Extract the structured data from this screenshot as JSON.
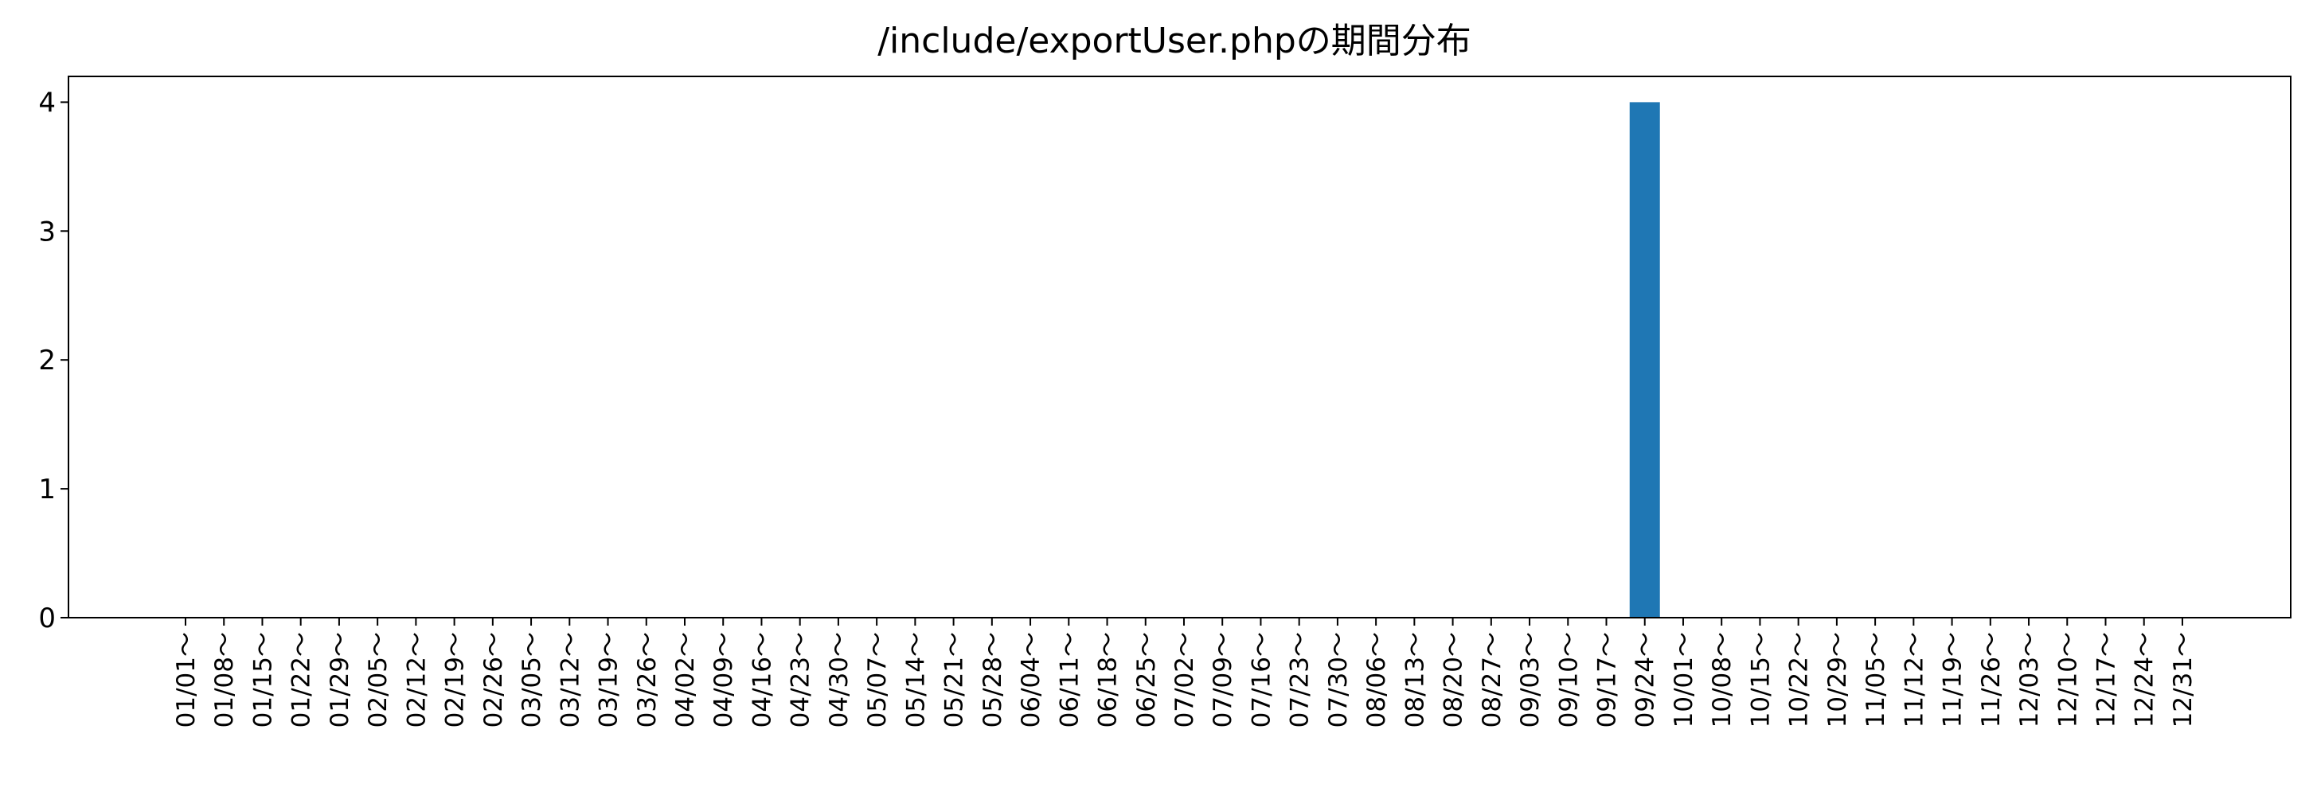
{
  "chart_data": {
    "type": "bar",
    "title": "/include/exportUser.phpの期間分布",
    "xlabel": "",
    "ylabel": "",
    "ylim": [
      0,
      4.2
    ],
    "yticks": [
      0,
      1,
      2,
      3,
      4
    ],
    "categories": [
      "01/01～",
      "01/08～",
      "01/15～",
      "01/22～",
      "01/29～",
      "02/05～",
      "02/12～",
      "02/19～",
      "02/26～",
      "03/05～",
      "03/12～",
      "03/19～",
      "03/26～",
      "04/02～",
      "04/09～",
      "04/16～",
      "04/23～",
      "04/30～",
      "05/07～",
      "05/14～",
      "05/21～",
      "05/28～",
      "06/04～",
      "06/11～",
      "06/18～",
      "06/25～",
      "07/02～",
      "07/09～",
      "07/16～",
      "07/23～",
      "07/30～",
      "08/06～",
      "08/13～",
      "08/20～",
      "08/27～",
      "09/03～",
      "09/10～",
      "09/17～",
      "09/24～",
      "10/01～",
      "10/08～",
      "10/15～",
      "10/22～",
      "10/29～",
      "11/05～",
      "11/12～",
      "11/19～",
      "11/26～",
      "12/03～",
      "12/10～",
      "12/17～",
      "12/24～",
      "12/31～"
    ],
    "values": [
      0,
      0,
      0,
      0,
      0,
      0,
      0,
      0,
      0,
      0,
      0,
      0,
      0,
      0,
      0,
      0,
      0,
      0,
      0,
      0,
      0,
      0,
      0,
      0,
      0,
      0,
      0,
      0,
      0,
      0,
      0,
      0,
      0,
      0,
      0,
      0,
      0,
      0,
      4,
      0,
      0,
      0,
      0,
      0,
      0,
      0,
      0,
      0,
      0,
      0,
      0,
      0,
      0
    ],
    "bar_color": "#1f77b4",
    "grid": false,
    "legend": "none"
  }
}
